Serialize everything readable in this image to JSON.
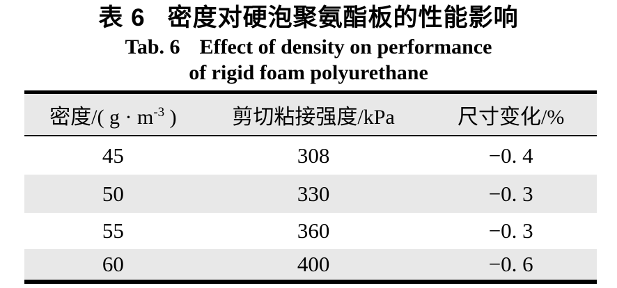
{
  "titles": {
    "zh_label": "表 6",
    "zh_text": "密度对硬泡聚氨酯板的性能影响",
    "en_label": "Tab. 6",
    "en_line1": "Effect of density on performance",
    "en_line2": "of rigid foam polyurethane"
  },
  "table": {
    "headers": {
      "density": {
        "prefix": "密度/( g · m",
        "sup": "-3",
        "suffix": " )"
      },
      "shear": "剪切粘接强度/kPa",
      "dimension": "尺寸变化/%"
    },
    "rows": [
      {
        "density": "45",
        "shear": "308",
        "dimension": "−0. 4"
      },
      {
        "density": "50",
        "shear": "330",
        "dimension": "−0. 3"
      },
      {
        "density": "55",
        "shear": "360",
        "dimension": "−0. 3"
      },
      {
        "density": "60",
        "shear": "400",
        "dimension": "−0. 6"
      }
    ]
  },
  "colors": {
    "row_shade": "#e8e8e8",
    "border": "#000000",
    "text": "#000000"
  }
}
